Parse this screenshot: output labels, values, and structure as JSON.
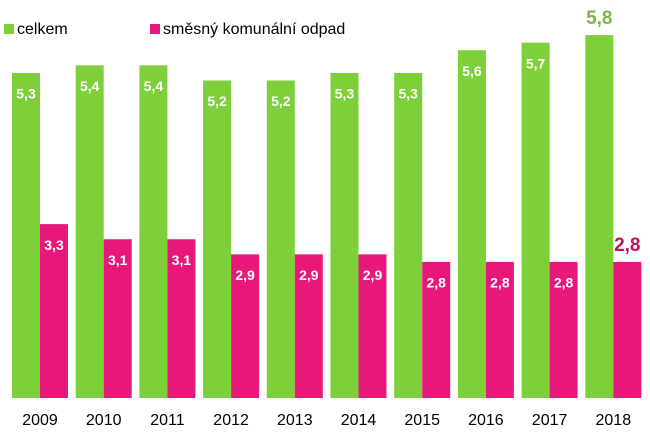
{
  "chart_data": {
    "type": "bar",
    "categories": [
      "2009",
      "2010",
      "2011",
      "2012",
      "2013",
      "2014",
      "2015",
      "2016",
      "2017",
      "2018"
    ],
    "series": [
      {
        "name": "celkem",
        "color": "#7ed03a",
        "values": [
          5.3,
          5.4,
          5.4,
          5.2,
          5.2,
          5.3,
          5.3,
          5.6,
          5.7,
          5.8
        ],
        "value_labels": [
          "5,3",
          "5,4",
          "5,4",
          "5,2",
          "5,2",
          "5,3",
          "5,3",
          "5,6",
          "5,7",
          "5,8"
        ]
      },
      {
        "name": "směsný komunální odpad",
        "color": "#e8177a",
        "values": [
          3.3,
          3.1,
          3.1,
          2.9,
          2.9,
          2.9,
          2.8,
          2.8,
          2.8,
          2.8
        ],
        "value_labels": [
          "3,3",
          "3,1",
          "3,1",
          "2,9",
          "2,9",
          "2,9",
          "2,8",
          "2,8",
          "2,8",
          "2,8"
        ]
      }
    ],
    "ylim": [
      1,
      6
    ],
    "legend": "top-left"
  }
}
